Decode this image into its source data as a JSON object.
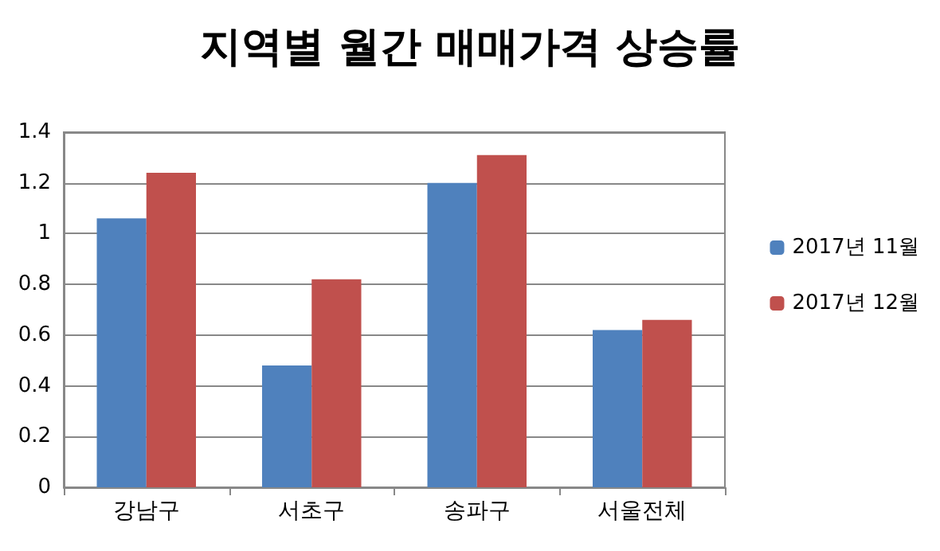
{
  "chart_data": {
    "type": "bar",
    "title": "지역별 월간 매매가격 상승률",
    "categories": [
      "강남구",
      "서초구",
      "송파구",
      "서울전체"
    ],
    "series": [
      {
        "name": "2017년 11월",
        "color": "#4f81bd",
        "values": [
          1.06,
          0.48,
          1.2,
          0.62
        ]
      },
      {
        "name": "2017년 12월",
        "color": "#c0504d",
        "values": [
          1.24,
          0.82,
          1.31,
          0.66
        ]
      }
    ],
    "ylim": [
      0,
      1.4
    ],
    "yticks": [
      0,
      0.2,
      0.4,
      0.6,
      0.8,
      1,
      1.2,
      1.4
    ],
    "grid": "y",
    "legend": "right"
  }
}
